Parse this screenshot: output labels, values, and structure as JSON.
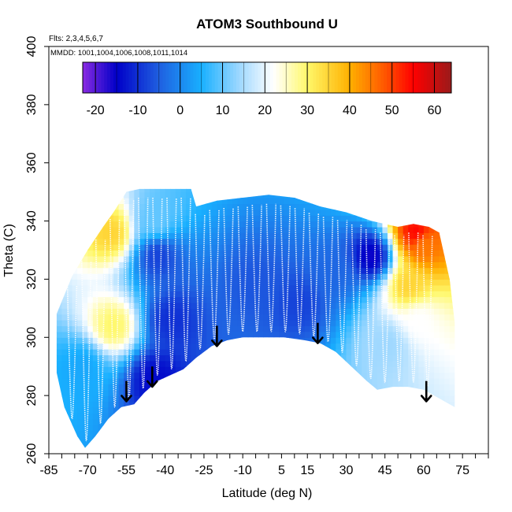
{
  "chart_data": {
    "type": "heatmap",
    "title": "ATOM3 Southbound U",
    "subtitle_flights": "Flts: 2,3,4,5,6,7",
    "annotation_dates": "MMDD: 1001,1004,1006,1008,1011,1014",
    "xlabel": "Latitude (deg N)",
    "ylabel": "Theta (C)",
    "xlim": [
      -85,
      85
    ],
    "ylim": [
      260,
      400
    ],
    "x_tick_labels": [
      "-85",
      "-70",
      "-55",
      "-40",
      "-25",
      "-10",
      "5",
      "15",
      "30",
      "45",
      "60",
      "75"
    ],
    "x_tick_values": [
      -85,
      -70,
      -55,
      -40,
      -25,
      -10,
      5,
      15,
      30,
      45,
      60,
      75
    ],
    "x_minor_ticks": [
      -85,
      -80,
      -75,
      -70,
      -65,
      -60,
      -55,
      -50,
      -45,
      -40,
      -35,
      -30,
      -25,
      -20,
      -15,
      -10,
      -5,
      0,
      5,
      10,
      15,
      20,
      25,
      30,
      35,
      40,
      45,
      50,
      55,
      60,
      65,
      70,
      75,
      80,
      85
    ],
    "y_tick_labels": [
      "260",
      "280",
      "300",
      "320",
      "340",
      "360",
      "380",
      "400"
    ],
    "y_tick_values": [
      260,
      280,
      300,
      320,
      340,
      360,
      380,
      400
    ],
    "colorbar": {
      "min": -23,
      "max": 64,
      "tick_labels": [
        "-20",
        "-10",
        "0",
        "10",
        "20",
        "30",
        "40",
        "50",
        "60"
      ],
      "tick_values": [
        -20,
        -10,
        0,
        10,
        20,
        30,
        40,
        50,
        60
      ],
      "stops": [
        {
          "v": -23,
          "c": "#8a2be2"
        },
        {
          "v": -15,
          "c": "#0000c8"
        },
        {
          "v": -5,
          "c": "#1f5fe0"
        },
        {
          "v": 5,
          "c": "#19b0ff"
        },
        {
          "v": 14,
          "c": "#9fd8ff"
        },
        {
          "v": 22,
          "c": "#ffffff"
        },
        {
          "v": 30,
          "c": "#fff86a"
        },
        {
          "v": 40,
          "c": "#ffb000"
        },
        {
          "v": 48,
          "c": "#ff5a00"
        },
        {
          "v": 55,
          "c": "#ff0000"
        },
        {
          "v": 64,
          "c": "#9a1a1a"
        }
      ]
    },
    "field_extent": {
      "lat_range": [
        -82,
        72
      ],
      "lower_boundary": [
        [
          -82,
          288
        ],
        [
          -79,
          276
        ],
        [
          -74,
          266
        ],
        [
          -71,
          262
        ],
        [
          -67,
          266
        ],
        [
          -62,
          272
        ],
        [
          -57,
          276
        ],
        [
          -52,
          277
        ],
        [
          -48,
          281
        ],
        [
          -43,
          285
        ],
        [
          -38,
          287
        ],
        [
          -33,
          289
        ],
        [
          -28,
          293
        ],
        [
          -22,
          297
        ],
        [
          -16,
          299
        ],
        [
          -10,
          300
        ],
        [
          -2,
          300
        ],
        [
          6,
          300
        ],
        [
          14,
          299
        ],
        [
          20,
          298
        ],
        [
          26,
          295
        ],
        [
          32,
          290
        ],
        [
          38,
          285
        ],
        [
          42,
          282
        ],
        [
          48,
          283
        ],
        [
          54,
          283
        ],
        [
          60,
          282
        ],
        [
          66,
          279
        ],
        [
          72,
          276
        ]
      ],
      "upper_boundary": [
        [
          -82,
          308
        ],
        [
          -76,
          321
        ],
        [
          -70,
          330
        ],
        [
          -64,
          338
        ],
        [
          -60,
          343
        ],
        [
          -55,
          350
        ],
        [
          -50,
          351
        ],
        [
          -30,
          351
        ],
        [
          -28,
          345
        ],
        [
          -20,
          347
        ],
        [
          -10,
          348
        ],
        [
          0,
          349
        ],
        [
          10,
          348
        ],
        [
          20,
          345
        ],
        [
          30,
          343
        ],
        [
          40,
          340
        ],
        [
          50,
          338
        ],
        [
          56,
          339
        ],
        [
          62,
          338
        ],
        [
          66,
          336
        ],
        [
          70,
          320
        ],
        [
          72,
          305
        ]
      ]
    },
    "field_features": [
      {
        "lat": -61,
        "theta": 336,
        "u": 35
      },
      {
        "lat": -60,
        "theta": 304,
        "u": 30
      },
      {
        "lat": -44,
        "theta": 340,
        "u": 10
      },
      {
        "lat": -43,
        "theta": 328,
        "u": -8
      },
      {
        "lat": -38,
        "theta": 306,
        "u": -10
      },
      {
        "lat": -44,
        "theta": 286,
        "u": -14
      },
      {
        "lat": -5,
        "theta": 318,
        "u": -6
      },
      {
        "lat": 12,
        "theta": 312,
        "u": -8
      },
      {
        "lat": 25,
        "theta": 322,
        "u": -4
      },
      {
        "lat": 40,
        "theta": 328,
        "u": -16
      },
      {
        "lat": 57,
        "theta": 336,
        "u": 55
      },
      {
        "lat": 60,
        "theta": 332,
        "u": 45
      },
      {
        "lat": 54,
        "theta": 318,
        "u": 35
      },
      {
        "lat": 58,
        "theta": 306,
        "u": 22
      },
      {
        "lat": 46,
        "theta": 298,
        "u": 14
      },
      {
        "lat": -72,
        "theta": 290,
        "u": 4
      }
    ],
    "arrows": [
      {
        "lat": -55,
        "theta_from": 285,
        "theta_to": 278
      },
      {
        "lat": -45,
        "theta_from": 290,
        "theta_to": 283
      },
      {
        "lat": -20,
        "theta_from": 304,
        "theta_to": 297
      },
      {
        "lat": 19,
        "theta_from": 305,
        "theta_to": 298
      },
      {
        "lat": 61,
        "theta_from": 285,
        "theta_to": 278
      }
    ]
  }
}
